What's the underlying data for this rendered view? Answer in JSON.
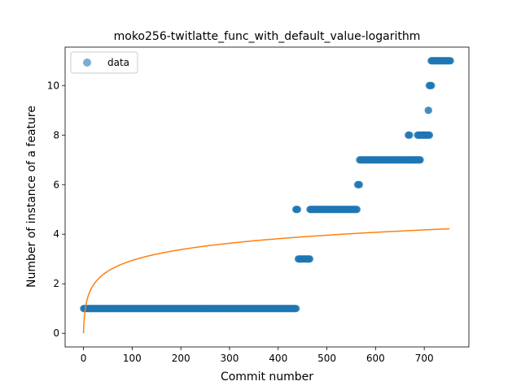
{
  "chart_data": {
    "type": "scatter",
    "title": "moko256-twitlatte_func_with_default_value-logarithm",
    "xlabel": "Commit number",
    "ylabel": "Number of instance of a feature",
    "xlim": [
      -37.7,
      791.7
    ],
    "ylim": [
      -0.55,
      11.55
    ],
    "xticks": [
      0,
      100,
      200,
      300,
      400,
      500,
      600,
      700
    ],
    "yticks": [
      0,
      2,
      4,
      6,
      8,
      10
    ],
    "legend": {
      "position": "top-left",
      "entries": [
        "data"
      ]
    },
    "colors": {
      "data": "#1f77b4",
      "fit": "#ff7f0e"
    },
    "series": [
      {
        "name": "data",
        "kind": "scatter",
        "segments": [
          {
            "x_start": 0,
            "x_end": 437,
            "y": 1
          },
          {
            "x_start": 436,
            "x_end": 440,
            "y": 5
          },
          {
            "x_start": 441,
            "x_end": 465,
            "y": 3
          },
          {
            "x_start": 465,
            "x_end": 562,
            "y": 5
          },
          {
            "x_start": 563,
            "x_end": 567,
            "y": 6
          },
          {
            "x_start": 567,
            "x_end": 692,
            "y": 7
          },
          {
            "x_start": 667,
            "x_end": 670,
            "y": 8
          },
          {
            "x_start": 686,
            "x_end": 711,
            "y": 8
          },
          {
            "x_start": 708,
            "x_end": 709,
            "y": 9
          },
          {
            "x_start": 710,
            "x_end": 715,
            "y": 10
          },
          {
            "x_start": 714,
            "x_end": 754,
            "y": 11
          }
        ]
      },
      {
        "kind": "line",
        "function": "log",
        "a": 0.637,
        "b": 1.0,
        "x_range": [
          0,
          752
        ]
      }
    ]
  }
}
